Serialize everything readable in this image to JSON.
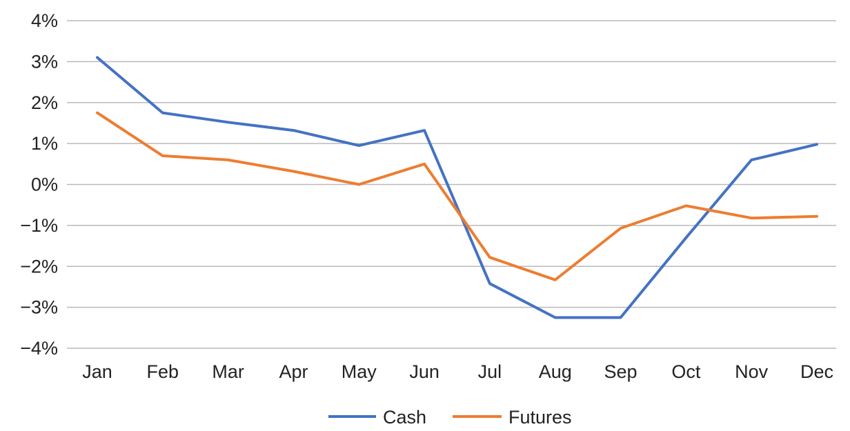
{
  "chart_data": {
    "type": "line",
    "categories": [
      "Jan",
      "Feb",
      "Mar",
      "Apr",
      "May",
      "Jun",
      "Jul",
      "Aug",
      "Sep",
      "Oct",
      "Nov",
      "Dec"
    ],
    "series": [
      {
        "name": "Cash",
        "color": "#4472C4",
        "values": [
          3.1,
          1.75,
          1.52,
          1.32,
          0.95,
          1.32,
          -2.42,
          -3.25,
          -3.25,
          -1.3,
          0.6,
          0.98
        ]
      },
      {
        "name": "Futures",
        "color": "#ED7D31",
        "values": [
          1.75,
          0.7,
          0.6,
          0.32,
          0.0,
          0.5,
          -1.78,
          -2.33,
          -1.07,
          -0.52,
          -0.82,
          -0.78
        ]
      }
    ],
    "ylim": [
      -4,
      4
    ],
    "yticks": [
      4,
      3,
      2,
      1,
      0,
      -1,
      -2,
      -3,
      -4
    ],
    "ytick_labels": [
      "4%",
      "3%",
      "2%",
      "1%",
      "0%",
      "−1%",
      "−2%",
      "−3%",
      "−4%"
    ],
    "grid": true,
    "legend_position": "bottom"
  }
}
